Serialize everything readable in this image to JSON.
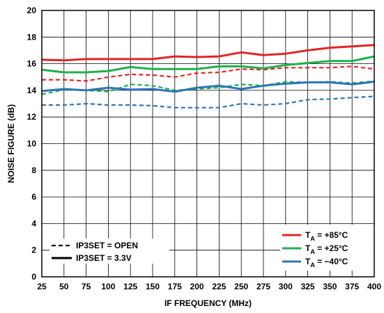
{
  "chart_data": {
    "type": "line",
    "xlabel": "IF FREQUENCY (MHz)",
    "ylabel": "NOISE FIGURE (dB)",
    "xlim": [
      25,
      400
    ],
    "ylim": [
      0,
      20
    ],
    "grid": true,
    "xticks": [
      "25",
      "50",
      "75",
      "100",
      "125",
      "150",
      "175",
      "200",
      "225",
      "250",
      "275",
      "300",
      "325",
      "350",
      "375",
      "400"
    ],
    "yticks": [
      "0",
      "2",
      "4",
      "6",
      "8",
      "10",
      "12",
      "14",
      "16",
      "18",
      "20"
    ],
    "x": [
      25,
      50,
      75,
      100,
      125,
      150,
      175,
      200,
      225,
      250,
      275,
      300,
      325,
      350,
      375,
      400
    ],
    "series": [
      {
        "temp": "+85°C",
        "ip3set": "3.3V",
        "color": "#e32526",
        "dash": false,
        "values": [
          16.3,
          16.25,
          16.35,
          16.35,
          16.35,
          16.35,
          16.55,
          16.5,
          16.55,
          16.85,
          16.65,
          16.75,
          17.0,
          17.2,
          17.3,
          17.4
        ]
      },
      {
        "temp": "+85°C",
        "ip3set": "OPEN",
        "color": "#e32526",
        "dash": true,
        "values": [
          14.8,
          14.8,
          14.7,
          15.0,
          15.2,
          15.15,
          15.0,
          15.3,
          15.35,
          15.6,
          15.55,
          15.7,
          15.7,
          15.7,
          15.8,
          15.6
        ]
      },
      {
        "temp": "+25°C",
        "ip3set": "3.3V",
        "color": "#1db14b",
        "dash": false,
        "values": [
          15.55,
          15.35,
          15.35,
          15.45,
          15.75,
          15.6,
          15.6,
          15.6,
          15.8,
          15.8,
          15.65,
          15.9,
          16.05,
          16.2,
          16.2,
          16.55
        ]
      },
      {
        "temp": "+25°C",
        "ip3set": "OPEN",
        "color": "#1db14b",
        "dash": true,
        "values": [
          13.7,
          14.05,
          14.0,
          13.9,
          14.45,
          14.35,
          14.0,
          14.1,
          14.2,
          14.45,
          14.35,
          14.65,
          14.6,
          14.65,
          14.55,
          14.7
        ]
      },
      {
        "temp": "−40°C",
        "ip3set": "3.3V",
        "color": "#2e75b6",
        "dash": false,
        "values": [
          13.95,
          14.1,
          14.0,
          14.2,
          14.05,
          14.1,
          13.9,
          14.2,
          14.35,
          14.1,
          14.35,
          14.5,
          14.6,
          14.6,
          14.45,
          14.65
        ]
      },
      {
        "temp": "−40°C",
        "ip3set": "OPEN",
        "color": "#2e75b6",
        "dash": true,
        "values": [
          12.9,
          12.9,
          13.0,
          12.9,
          12.9,
          12.85,
          12.7,
          12.7,
          12.7,
          13.0,
          12.9,
          13.0,
          13.3,
          13.35,
          13.45,
          13.55
        ]
      }
    ],
    "legend_temp": {
      "placement": "bottom-right",
      "prefix": "T",
      "subscript": "A",
      "entries": [
        {
          "value": " = +85°C",
          "color": "#e32526"
        },
        {
          "value": " = +25°C",
          "color": "#1db14b"
        },
        {
          "value": " = −40°C",
          "color": "#2e75b6"
        }
      ]
    },
    "legend_style": {
      "placement": "bottom-left",
      "entries": [
        {
          "label": "IP3SET = OPEN",
          "dash": true
        },
        {
          "label": "IP3SET = 3.3V",
          "dash": false
        }
      ]
    }
  }
}
